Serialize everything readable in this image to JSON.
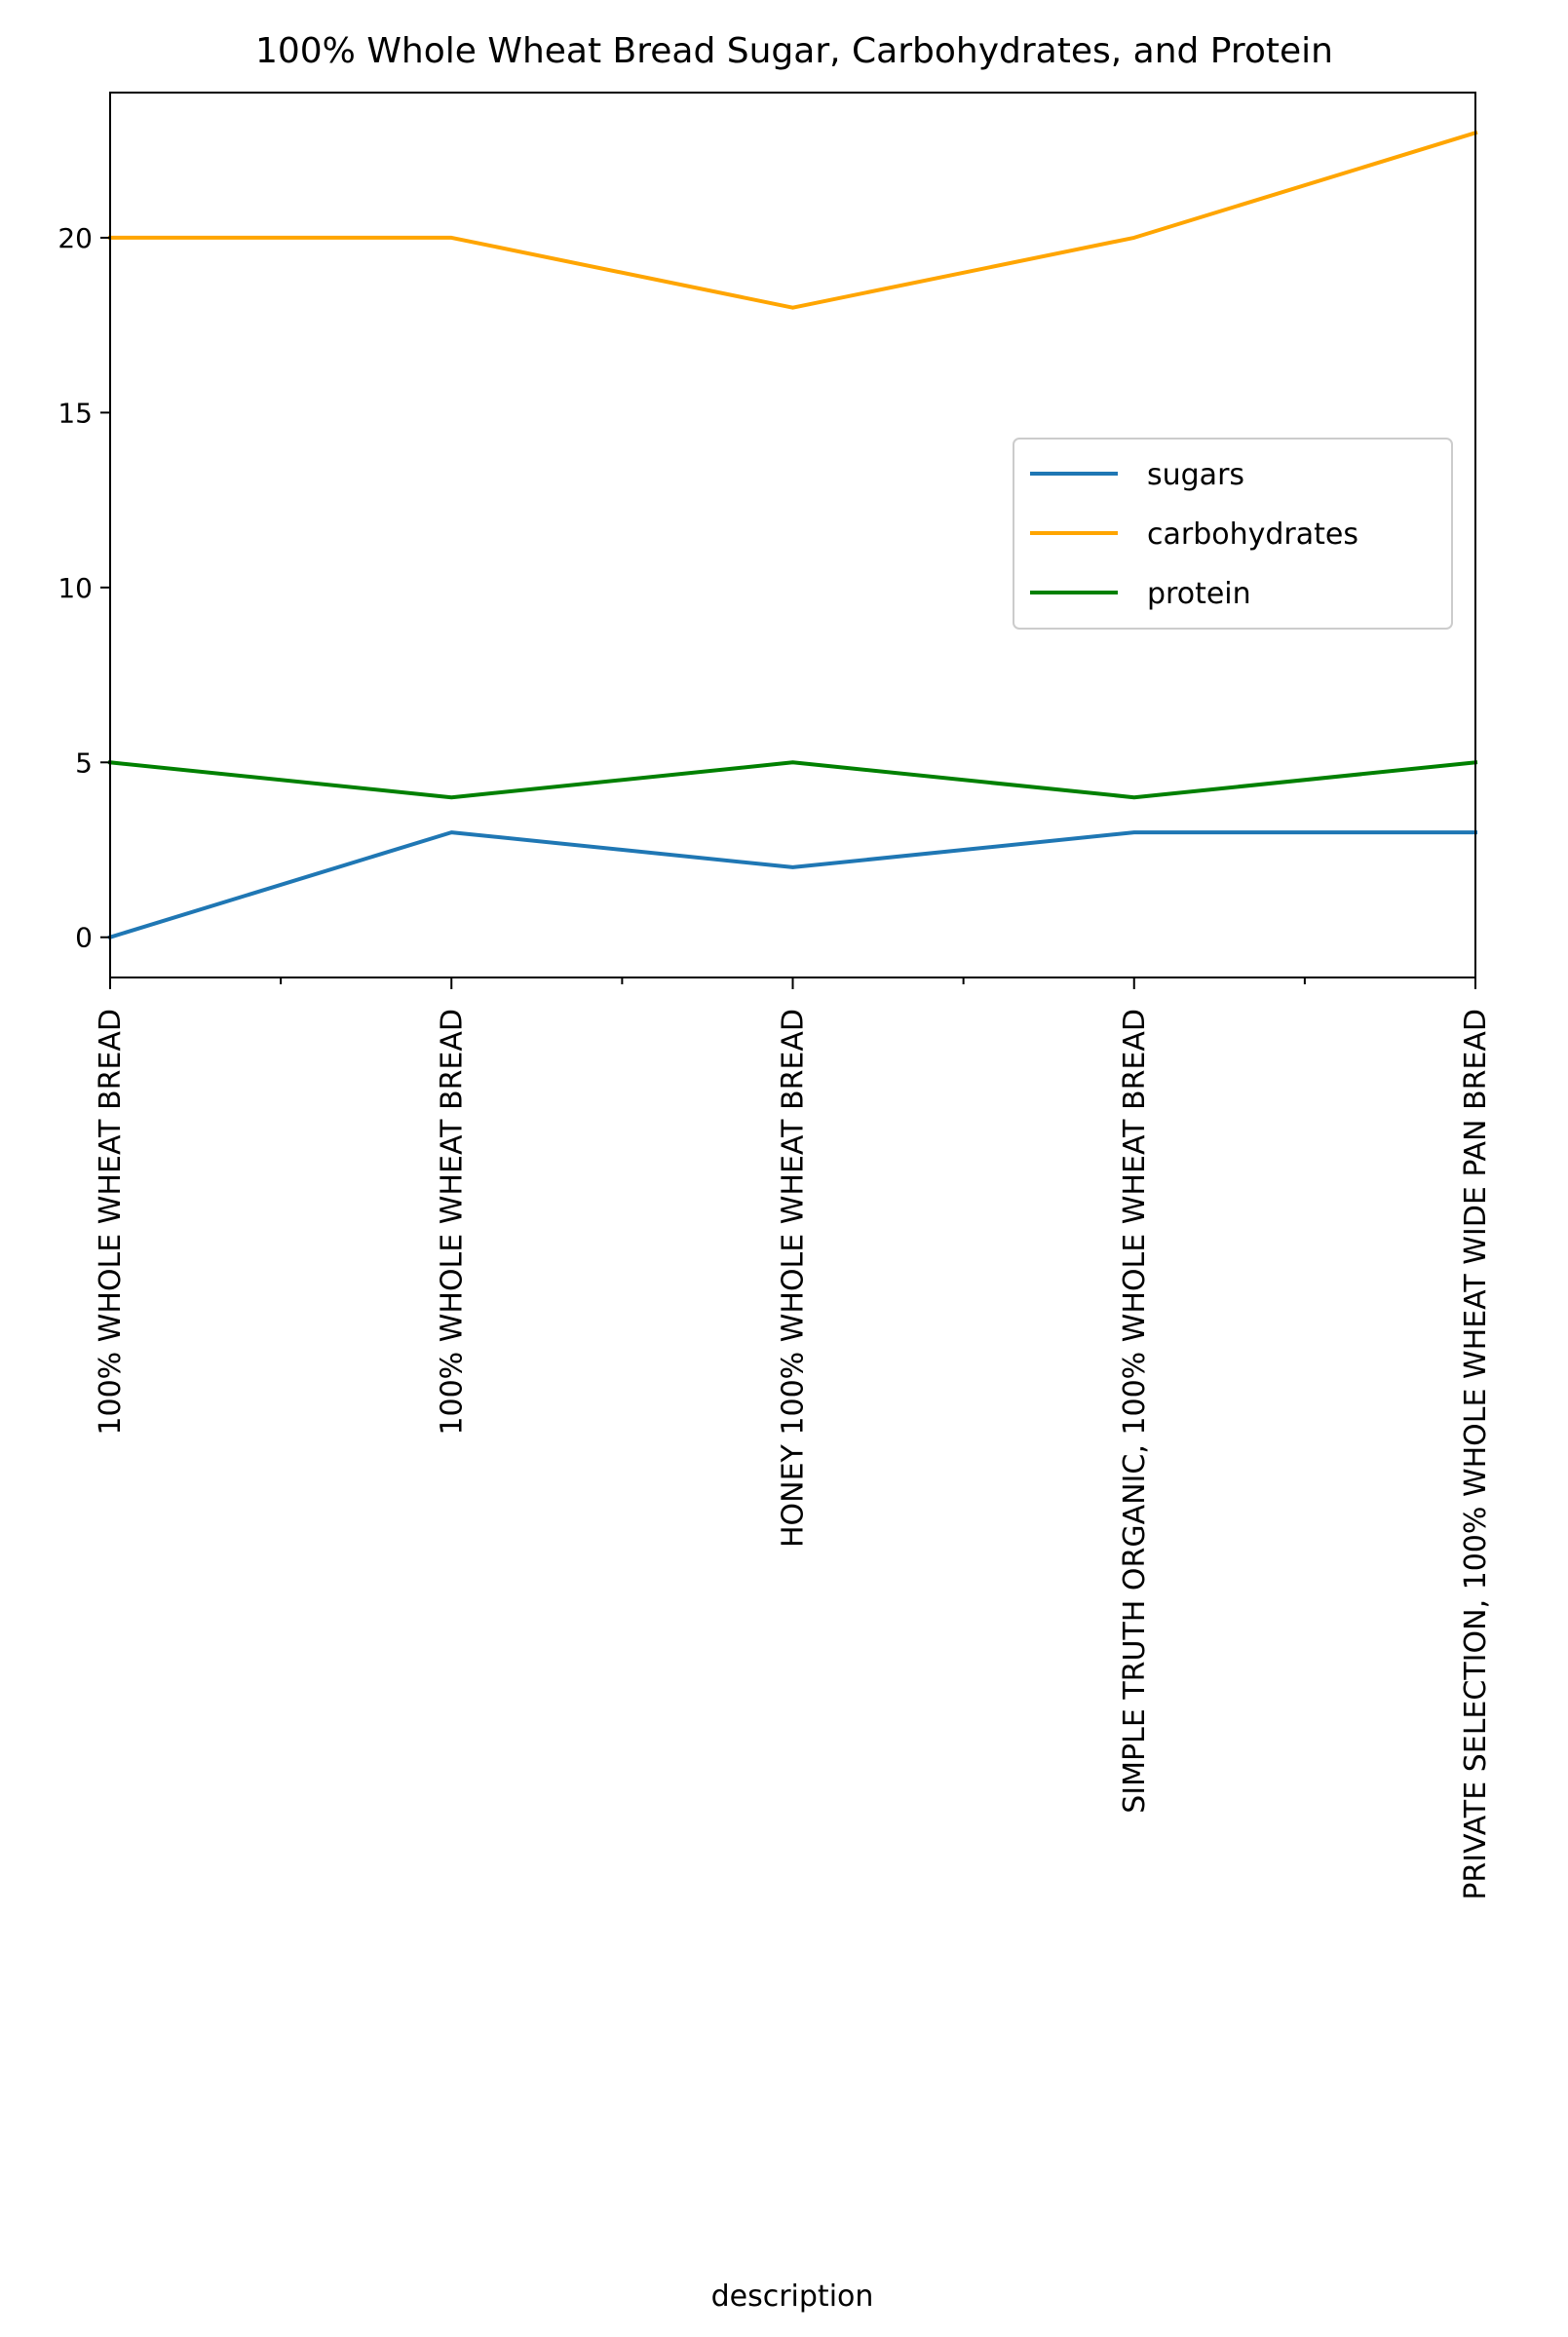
{
  "chart_data": {
    "type": "line",
    "title": "100% Whole Wheat Bread Sugar, Carbohydrates, and Protein",
    "xlabel": "description",
    "ylabel": "",
    "categories": [
      "100% WHOLE WHEAT BREAD",
      "100% WHOLE WHEAT BREAD",
      "HONEY 100% WHOLE WHEAT BREAD",
      "SIMPLE TRUTH ORGANIC, 100% WHOLE WHEAT BREAD",
      "PRIVATE SELECTION, 100% WHOLE WHEAT WIDE PAN BREAD"
    ],
    "series": [
      {
        "name": "sugars",
        "color": "#1f77b4",
        "values": [
          0,
          3,
          2,
          3,
          3
        ]
      },
      {
        "name": "carbohydrates",
        "color": "#ffa500",
        "values": [
          20,
          20,
          18,
          20,
          23
        ]
      },
      {
        "name": "protein",
        "color": "#008000",
        "values": [
          5,
          4,
          5,
          4,
          5
        ]
      }
    ],
    "yticks": [
      "0",
      "5",
      "10",
      "15",
      "20"
    ],
    "ylim": [
      -1.15,
      24.15
    ],
    "grid": false,
    "legend_position": "center-right"
  }
}
